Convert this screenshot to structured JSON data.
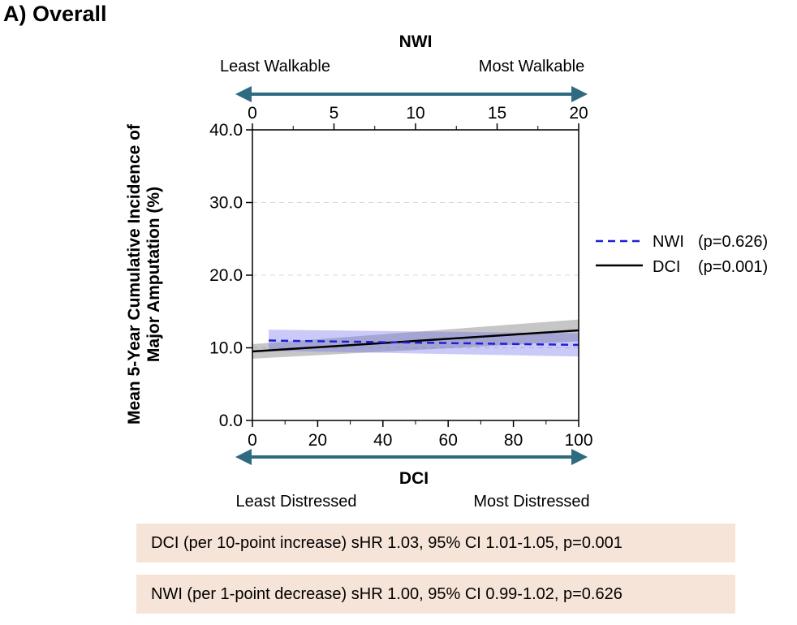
{
  "panel_title": "A) Overall",
  "top_axis": {
    "name": "NWI",
    "left_label": "Least Walkable",
    "right_label": "Most Walkable",
    "range": [
      0,
      20
    ],
    "ticks": [
      "0",
      "5",
      "10",
      "15",
      "20"
    ],
    "arrow_color": "#2e6a80"
  },
  "bottom_axis": {
    "name": "DCI",
    "left_label": "Least  Distressed",
    "right_label": "Most Distressed",
    "range": [
      0,
      100
    ],
    "ticks": [
      "0",
      "20",
      "40",
      "60",
      "80",
      "100"
    ],
    "arrow_color": "#2e6a80"
  },
  "legend": [
    {
      "name": "NWI",
      "p": "(p=0.626)",
      "color": "#1f1fd6",
      "style": "dashed"
    },
    {
      "name": "DCI",
      "p": "(p=0.001)",
      "color": "#000000",
      "style": "solid"
    }
  ],
  "results": [
    "DCI (per 10-point increase) sHR 1.03, 95% CI 1.01-1.05, p=0.001",
    "NWI (per 1-point decrease) sHR 1.00, 95% CI 0.99-1.02, p=0.626"
  ],
  "chart_data": {
    "type": "line",
    "title": "A) Overall",
    "ylabel_line1": "Mean 5-Year Cumulative Incidence of",
    "ylabel_line2": "Major Amputation (%)",
    "ylim": [
      0,
      40
    ],
    "yticks": [
      "0.0",
      "10.0",
      "20.0",
      "30.0",
      "40.0"
    ],
    "grid": "horizontal dashed",
    "legend_position": "right",
    "series": [
      {
        "name": "DCI",
        "axis": "bottom (DCI 0-100)",
        "x": [
          0,
          100
        ],
        "y": [
          9.5,
          12.4
        ],
        "ci_lower": [
          8.5,
          10.9
        ],
        "ci_upper": [
          10.5,
          13.9
        ],
        "color": "#000000",
        "band_color": "#808080"
      },
      {
        "name": "NWI",
        "axis": "top (NWI 0-20)",
        "x": [
          1,
          20
        ],
        "y": [
          11.0,
          10.4
        ],
        "ci_lower": [
          9.6,
          8.8
        ],
        "ci_upper": [
          12.5,
          12.0
        ],
        "color": "#1f1fd6",
        "band_color": "#6666ee"
      }
    ]
  }
}
